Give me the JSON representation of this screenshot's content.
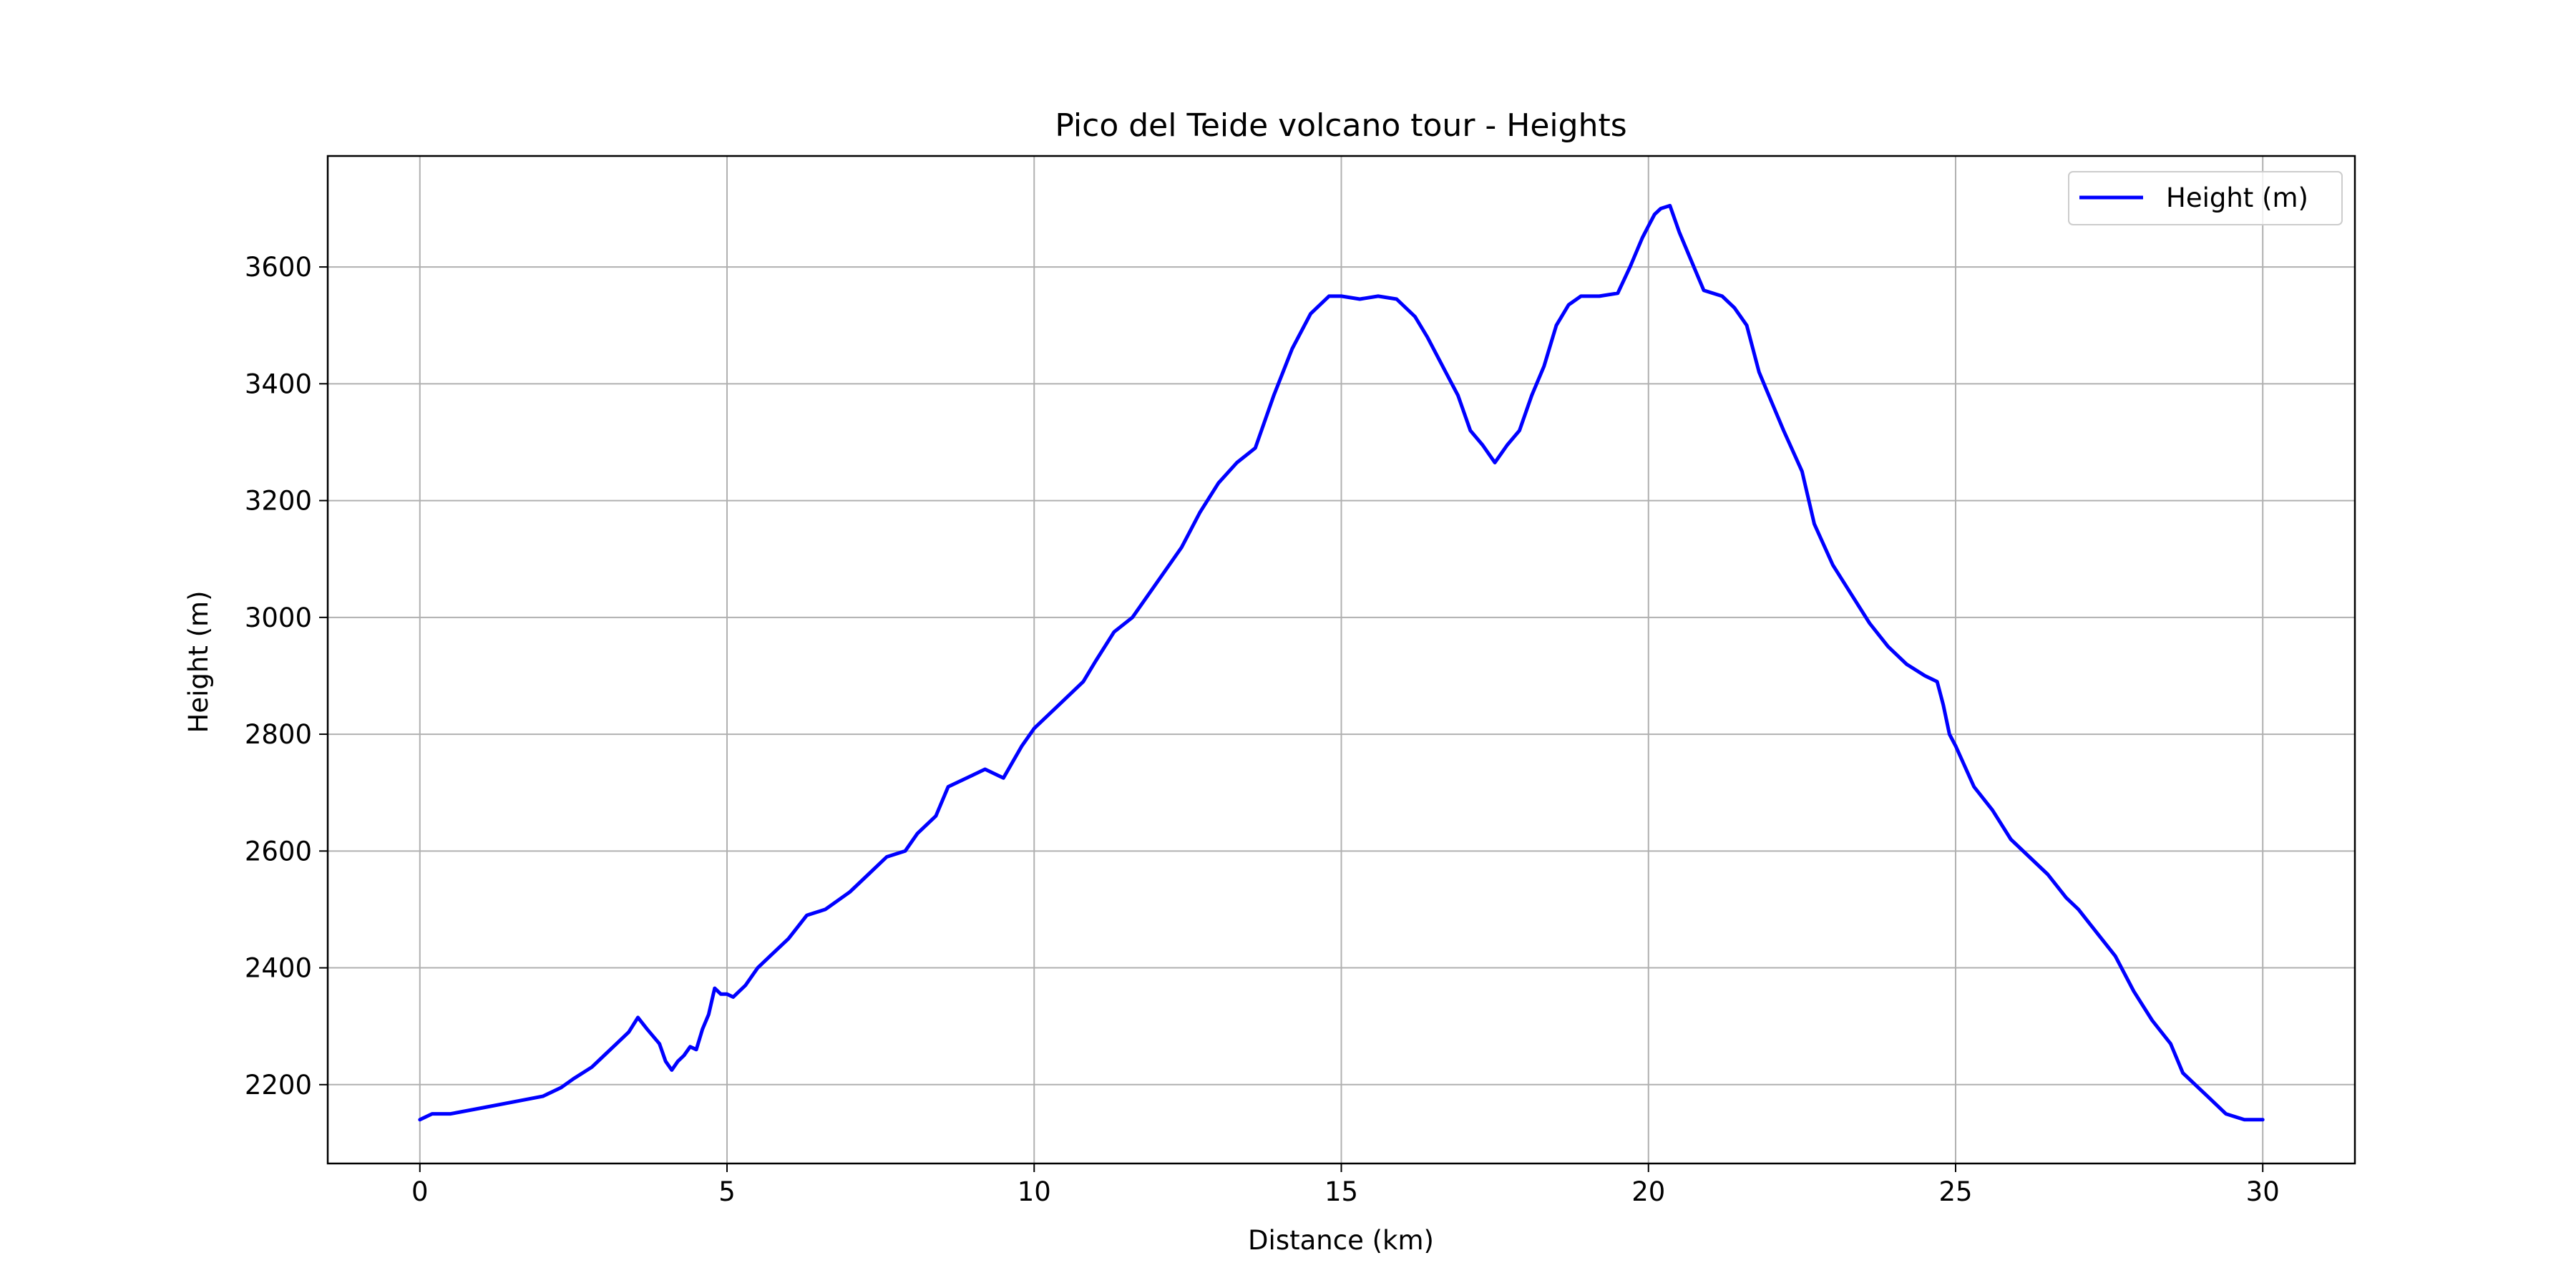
{
  "chart_data": {
    "type": "line",
    "title": "Pico del Teide volcano tour - Heights",
    "xlabel": "Distance (km)",
    "ylabel": "Height (m)",
    "xlim": [
      -1.5,
      31.5
    ],
    "ylim": [
      2065,
      3790
    ],
    "xticks": [
      0,
      5,
      10,
      15,
      20,
      25,
      30
    ],
    "yticks": [
      2200,
      2400,
      2600,
      2800,
      3000,
      3200,
      3400,
      3600
    ],
    "grid": true,
    "legend": "top-right",
    "series": [
      {
        "name": "Height (m)",
        "color": "#0000ff",
        "x": [
          0,
          0.2,
          0.5,
          1.0,
          1.5,
          2.0,
          2.3,
          2.5,
          2.8,
          3.0,
          3.2,
          3.4,
          3.55,
          3.7,
          3.9,
          4.0,
          4.1,
          4.2,
          4.3,
          4.4,
          4.5,
          4.6,
          4.7,
          4.8,
          4.9,
          5.0,
          5.1,
          5.3,
          5.5,
          5.7,
          6.0,
          6.3,
          6.6,
          7.0,
          7.3,
          7.6,
          7.9,
          8.1,
          8.4,
          8.6,
          9.0,
          9.2,
          9.5,
          9.8,
          10.0,
          10.4,
          10.8,
          11.0,
          11.3,
          11.6,
          12.0,
          12.4,
          12.7,
          13.0,
          13.3,
          13.6,
          13.9,
          14.2,
          14.5,
          14.8,
          15.0,
          15.3,
          15.6,
          15.9,
          16.2,
          16.4,
          16.7,
          16.9,
          17.1,
          17.3,
          17.5,
          17.7,
          17.9,
          18.1,
          18.3,
          18.5,
          18.7,
          18.9,
          19.2,
          19.5,
          19.7,
          19.9,
          20.0,
          20.1,
          20.2,
          20.35,
          20.5,
          20.7,
          20.9,
          21.2,
          21.4,
          21.6,
          21.8,
          22.0,
          22.2,
          22.5,
          22.7,
          23.0,
          23.3,
          23.6,
          23.9,
          24.2,
          24.5,
          24.7,
          24.8,
          24.9,
          25.0,
          25.3,
          25.6,
          25.9,
          26.2,
          26.5,
          26.8,
          27.0,
          27.3,
          27.6,
          27.9,
          28.2,
          28.5,
          28.7,
          28.9,
          29.1,
          29.4,
          29.7,
          30.0
        ],
        "y": [
          2140,
          2150,
          2150,
          2160,
          2170,
          2180,
          2195,
          2210,
          2230,
          2250,
          2270,
          2290,
          2315,
          2295,
          2270,
          2240,
          2225,
          2240,
          2250,
          2265,
          2260,
          2295,
          2320,
          2365,
          2355,
          2355,
          2350,
          2370,
          2400,
          2420,
          2450,
          2490,
          2500,
          2530,
          2560,
          2590,
          2600,
          2630,
          2660,
          2710,
          2730,
          2740,
          2725,
          2780,
          2810,
          2850,
          2890,
          2925,
          2975,
          3000,
          3060,
          3120,
          3180,
          3230,
          3265,
          3290,
          3380,
          3460,
          3520,
          3550,
          3550,
          3545,
          3550,
          3545,
          3515,
          3480,
          3420,
          3380,
          3320,
          3295,
          3265,
          3295,
          3320,
          3380,
          3430,
          3500,
          3535,
          3550,
          3550,
          3555,
          3600,
          3650,
          3670,
          3690,
          3700,
          3705,
          3660,
          3610,
          3560,
          3550,
          3530,
          3500,
          3420,
          3370,
          3320,
          3250,
          3160,
          3090,
          3040,
          2990,
          2950,
          2920,
          2900,
          2890,
          2850,
          2800,
          2780,
          2710,
          2670,
          2620,
          2590,
          2560,
          2520,
          2500,
          2460,
          2420,
          2360,
          2310,
          2270,
          2220,
          2200,
          2180,
          2150,
          2140,
          2140
        ]
      }
    ]
  }
}
